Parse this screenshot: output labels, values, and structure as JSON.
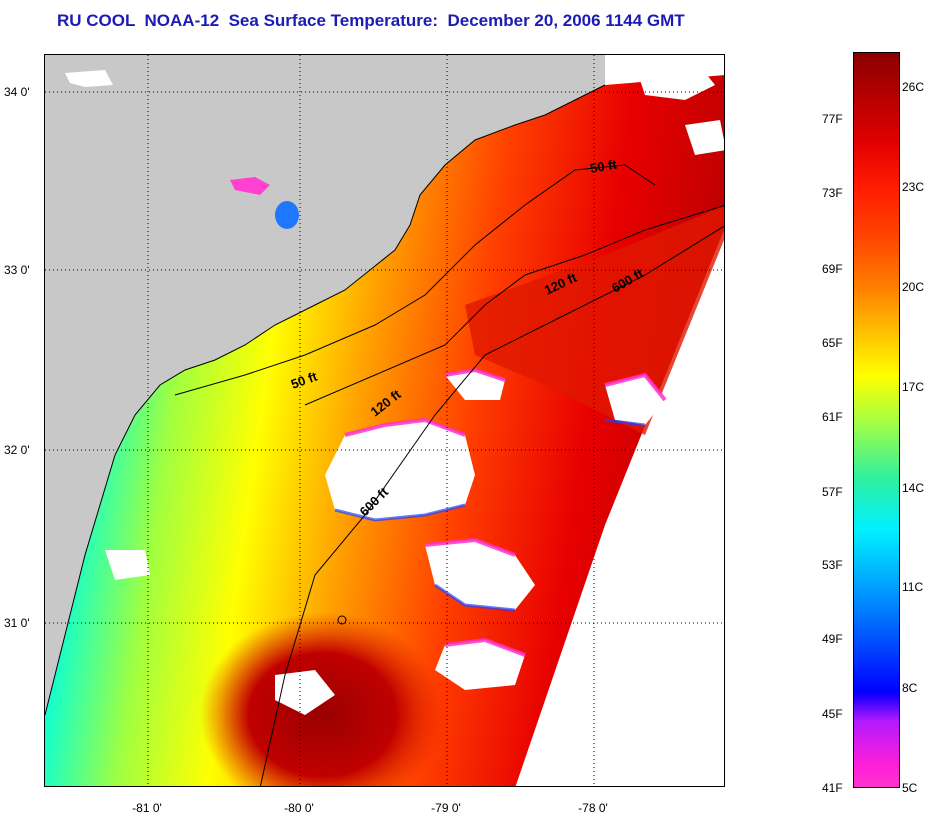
{
  "title": "RU COOL  NOAA-12  Sea Surface Temperature:  December 20, 2006 1144 GMT",
  "map": {
    "lat_labels": [
      "34 0'",
      "33 0'",
      "32 0'",
      "31 0'"
    ],
    "lon_labels": [
      "-81 0'",
      "-80 0'",
      "-79 0'",
      "-78 0'"
    ],
    "isobaths": [
      {
        "label": "50 ft",
        "note": "shallow"
      },
      {
        "label": "50 ft",
        "note": "shallow-south"
      },
      {
        "label": "120 ft",
        "note": "mid"
      },
      {
        "label": "120 ft",
        "note": "mid-south"
      },
      {
        "label": "600 ft",
        "note": "shelf-break"
      },
      {
        "label": "600 ft",
        "note": "shelf-break-south"
      }
    ],
    "colors": {
      "land": "#c8c8c8",
      "cloud": "#ffffff",
      "contour": "#000000",
      "grid": "#000000"
    }
  },
  "colorbar": {
    "fahrenheit_labels": [
      "77F",
      "73F",
      "69F",
      "65F",
      "61F",
      "57F",
      "53F",
      "49F",
      "45F",
      "41F"
    ],
    "celsius_labels": [
      "26C",
      "23C",
      "20C",
      "17C",
      "14C",
      "11C",
      "8C",
      "5C"
    ]
  }
}
